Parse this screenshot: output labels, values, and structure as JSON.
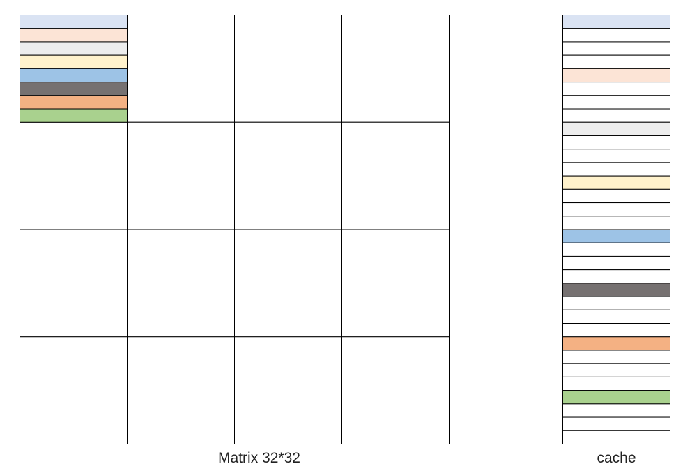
{
  "matrix": {
    "caption": "Matrix 32*32",
    "grid_rows": 4,
    "grid_cols": 4,
    "block_row_count": 8,
    "row_colors": [
      "#dae3f3",
      "#fce4d6",
      "#ededed",
      "#fff2cc",
      "#9dc3e6",
      "#767171",
      "#f4b183",
      "#a9d18e"
    ]
  },
  "cache": {
    "caption": "cache",
    "line_count": 32,
    "colored_lines": [
      {
        "index": 0,
        "color": "#dae3f3"
      },
      {
        "index": 4,
        "color": "#fce4d6"
      },
      {
        "index": 8,
        "color": "#ededed"
      },
      {
        "index": 12,
        "color": "#fff2cc"
      },
      {
        "index": 16,
        "color": "#9dc3e6"
      },
      {
        "index": 20,
        "color": "#767171"
      },
      {
        "index": 24,
        "color": "#f4b183"
      },
      {
        "index": 28,
        "color": "#a9d18e"
      }
    ]
  },
  "colors": {
    "line": "#000000",
    "empty": "#ffffff"
  }
}
